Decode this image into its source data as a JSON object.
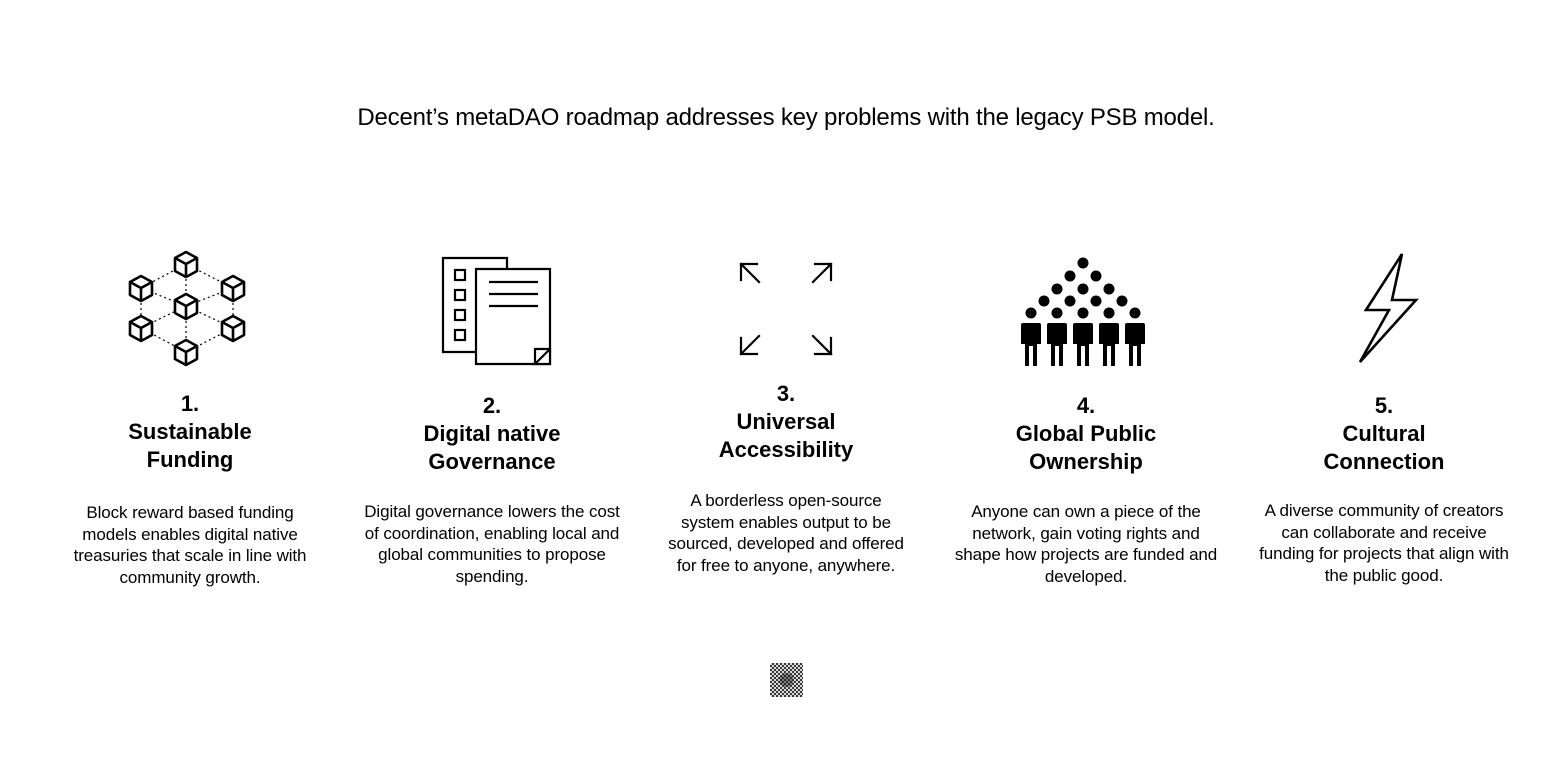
{
  "headline": "Decent’s metaDAO roadmap addresses key problems with the legacy PSB model.",
  "cards": [
    {
      "number": "1.",
      "title_line1": "Sustainable",
      "title_line2": "Funding",
      "description": "Block reward based funding models enables digital native treasuries that scale in line with community growth.",
      "icon": "cube-network-icon"
    },
    {
      "number": "2.",
      "title_line1": "Digital native",
      "title_line2": "Governance",
      "description": "Digital governance lowers the cost of coordination, enabling local and global communities to propose spending.",
      "icon": "documents-checklist-icon"
    },
    {
      "number": "3.",
      "title_line1": "Universal",
      "title_line2": "Accessibility",
      "description": "A borderless open-source system enables output to be sourced, developed and offered for free to anyone, anywhere.",
      "icon": "expand-arrows-icon"
    },
    {
      "number": "4.",
      "title_line1": "Global Public",
      "title_line2": "Ownership",
      "description": "Anyone can own a piece of the network, gain voting rights and shape how projects are funded and developed.",
      "icon": "crowd-people-icon"
    },
    {
      "number": "5.",
      "title_line1": "Cultural",
      "title_line2": "Connection",
      "description": "A diverse community of creators can collaborate and receive funding for projects that align with the public good.",
      "icon": "lightning-bolt-icon"
    }
  ],
  "footer": {
    "icon": "checker-logo-icon"
  }
}
